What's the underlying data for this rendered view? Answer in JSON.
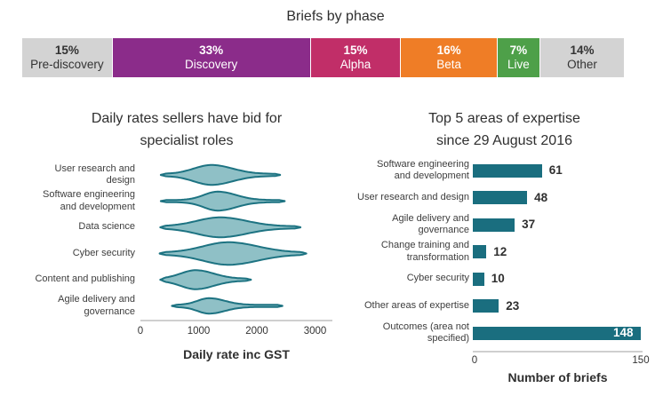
{
  "page": {
    "title": "Briefs by phase"
  },
  "phase_bar": {
    "segments": [
      {
        "label": "Pre-discovery",
        "pct": "15%",
        "value": 15,
        "color": "#d3d3d3",
        "text_color": "#333333"
      },
      {
        "label": "Discovery",
        "pct": "33%",
        "value": 33,
        "color": "#8b2c8a",
        "text_color": "#ffffff"
      },
      {
        "label": "Alpha",
        "pct": "15%",
        "value": 15,
        "color": "#c12e68",
        "text_color": "#ffffff"
      },
      {
        "label": "Beta",
        "pct": "16%",
        "value": 16,
        "color": "#ef7d26",
        "text_color": "#ffffff"
      },
      {
        "label": "Live",
        "pct": "7%",
        "value": 7,
        "color": "#4ea049",
        "text_color": "#ffffff"
      },
      {
        "label": "Other",
        "pct": "14%",
        "value": 14,
        "color": "#d3d3d3",
        "text_color": "#333333"
      }
    ]
  },
  "chart_data": [
    {
      "type": "bar",
      "variant": "stacked-horizontal-percent",
      "title": "Briefs by phase",
      "categories": [
        "Pre-discovery",
        "Discovery",
        "Alpha",
        "Beta",
        "Live",
        "Other"
      ],
      "values": [
        15,
        33,
        15,
        16,
        7,
        14
      ],
      "unit": "%",
      "colors": [
        "#d3d3d3",
        "#8b2c8a",
        "#c12e68",
        "#ef7d26",
        "#4ea049",
        "#d3d3d3"
      ]
    },
    {
      "type": "area",
      "variant": "violin-horizontal",
      "title": "Daily rates sellers have bid for specialist roles",
      "title_lines": [
        "Daily rates sellers have bid for",
        "specialist roles"
      ],
      "xlabel": "Daily rate inc GST",
      "xlim": [
        0,
        3000
      ],
      "xticks": [
        "0",
        "1000",
        "2000",
        "3000"
      ],
      "series": [
        {
          "name": "User research and design",
          "label_lines": [
            "User research and",
            "design"
          ],
          "min": 350,
          "peak": 1220,
          "max": 2400,
          "sigma_left": 300,
          "sigma_right": 360,
          "amp": 10
        },
        {
          "name": "Software engineering and development",
          "label_lines": [
            "Software engineering",
            "and development"
          ],
          "min": 350,
          "peak": 1330,
          "max": 2480,
          "sigma_left": 240,
          "sigma_right": 310,
          "amp": 9.5
        },
        {
          "name": "Data science",
          "label_lines": [
            "Data science"
          ],
          "min": 340,
          "peak": 1370,
          "max": 2750,
          "sigma_left": 400,
          "sigma_right": 450,
          "amp": 10
        },
        {
          "name": "Cyber security",
          "label_lines": [
            "Cyber security"
          ],
          "min": 330,
          "peak": 1510,
          "max": 2850,
          "sigma_left": 430,
          "sigma_right": 500,
          "amp": 11.5
        },
        {
          "name": "Content and publishing",
          "label_lines": [
            "Content and publishing"
          ],
          "min": 340,
          "peak": 950,
          "max": 1900,
          "sigma_left": 260,
          "sigma_right": 310,
          "amp": 9.5
        },
        {
          "name": "Agile delivery and governance",
          "label_lines": [
            "Agile delivery and",
            "governance"
          ],
          "min": 540,
          "peak": 1180,
          "max": 2440,
          "sigma_left": 200,
          "sigma_right": 270,
          "amp": 7.5
        }
      ]
    },
    {
      "type": "bar",
      "variant": "horizontal",
      "title": "Top 5 areas of expertise since 29 August 2016",
      "title_lines": [
        "Top 5 areas of expertise",
        "since 29 August 2016"
      ],
      "xlabel": "Number of briefs",
      "xlim": [
        0,
        150
      ],
      "xticks": [
        "0",
        "150"
      ],
      "categories": [
        "Software engineering and development",
        "User research and design",
        "Agile delivery and governance",
        "Change training and transformation",
        "Cyber security",
        "Other areas of expertise",
        "Outcomes (area not specified)"
      ],
      "label_lines": [
        [
          "Software engineering",
          "and development"
        ],
        [
          "User research and design"
        ],
        [
          "Agile delivery and",
          "governance"
        ],
        [
          "Change training and",
          "transformation"
        ],
        [
          "Cyber security"
        ],
        [
          "Other areas of expertise"
        ],
        [
          "Outcomes (area not",
          "specified)"
        ]
      ],
      "values": [
        61,
        48,
        37,
        12,
        10,
        23,
        148
      ],
      "bar_color": "#1a6e7f"
    }
  ],
  "colors": {
    "teal": "#1a6e7f",
    "violin_fill": "#8fc0c6",
    "violin_stroke": "#1d7382",
    "axis_line": "#cfcfcf",
    "text_dark": "#333333"
  }
}
